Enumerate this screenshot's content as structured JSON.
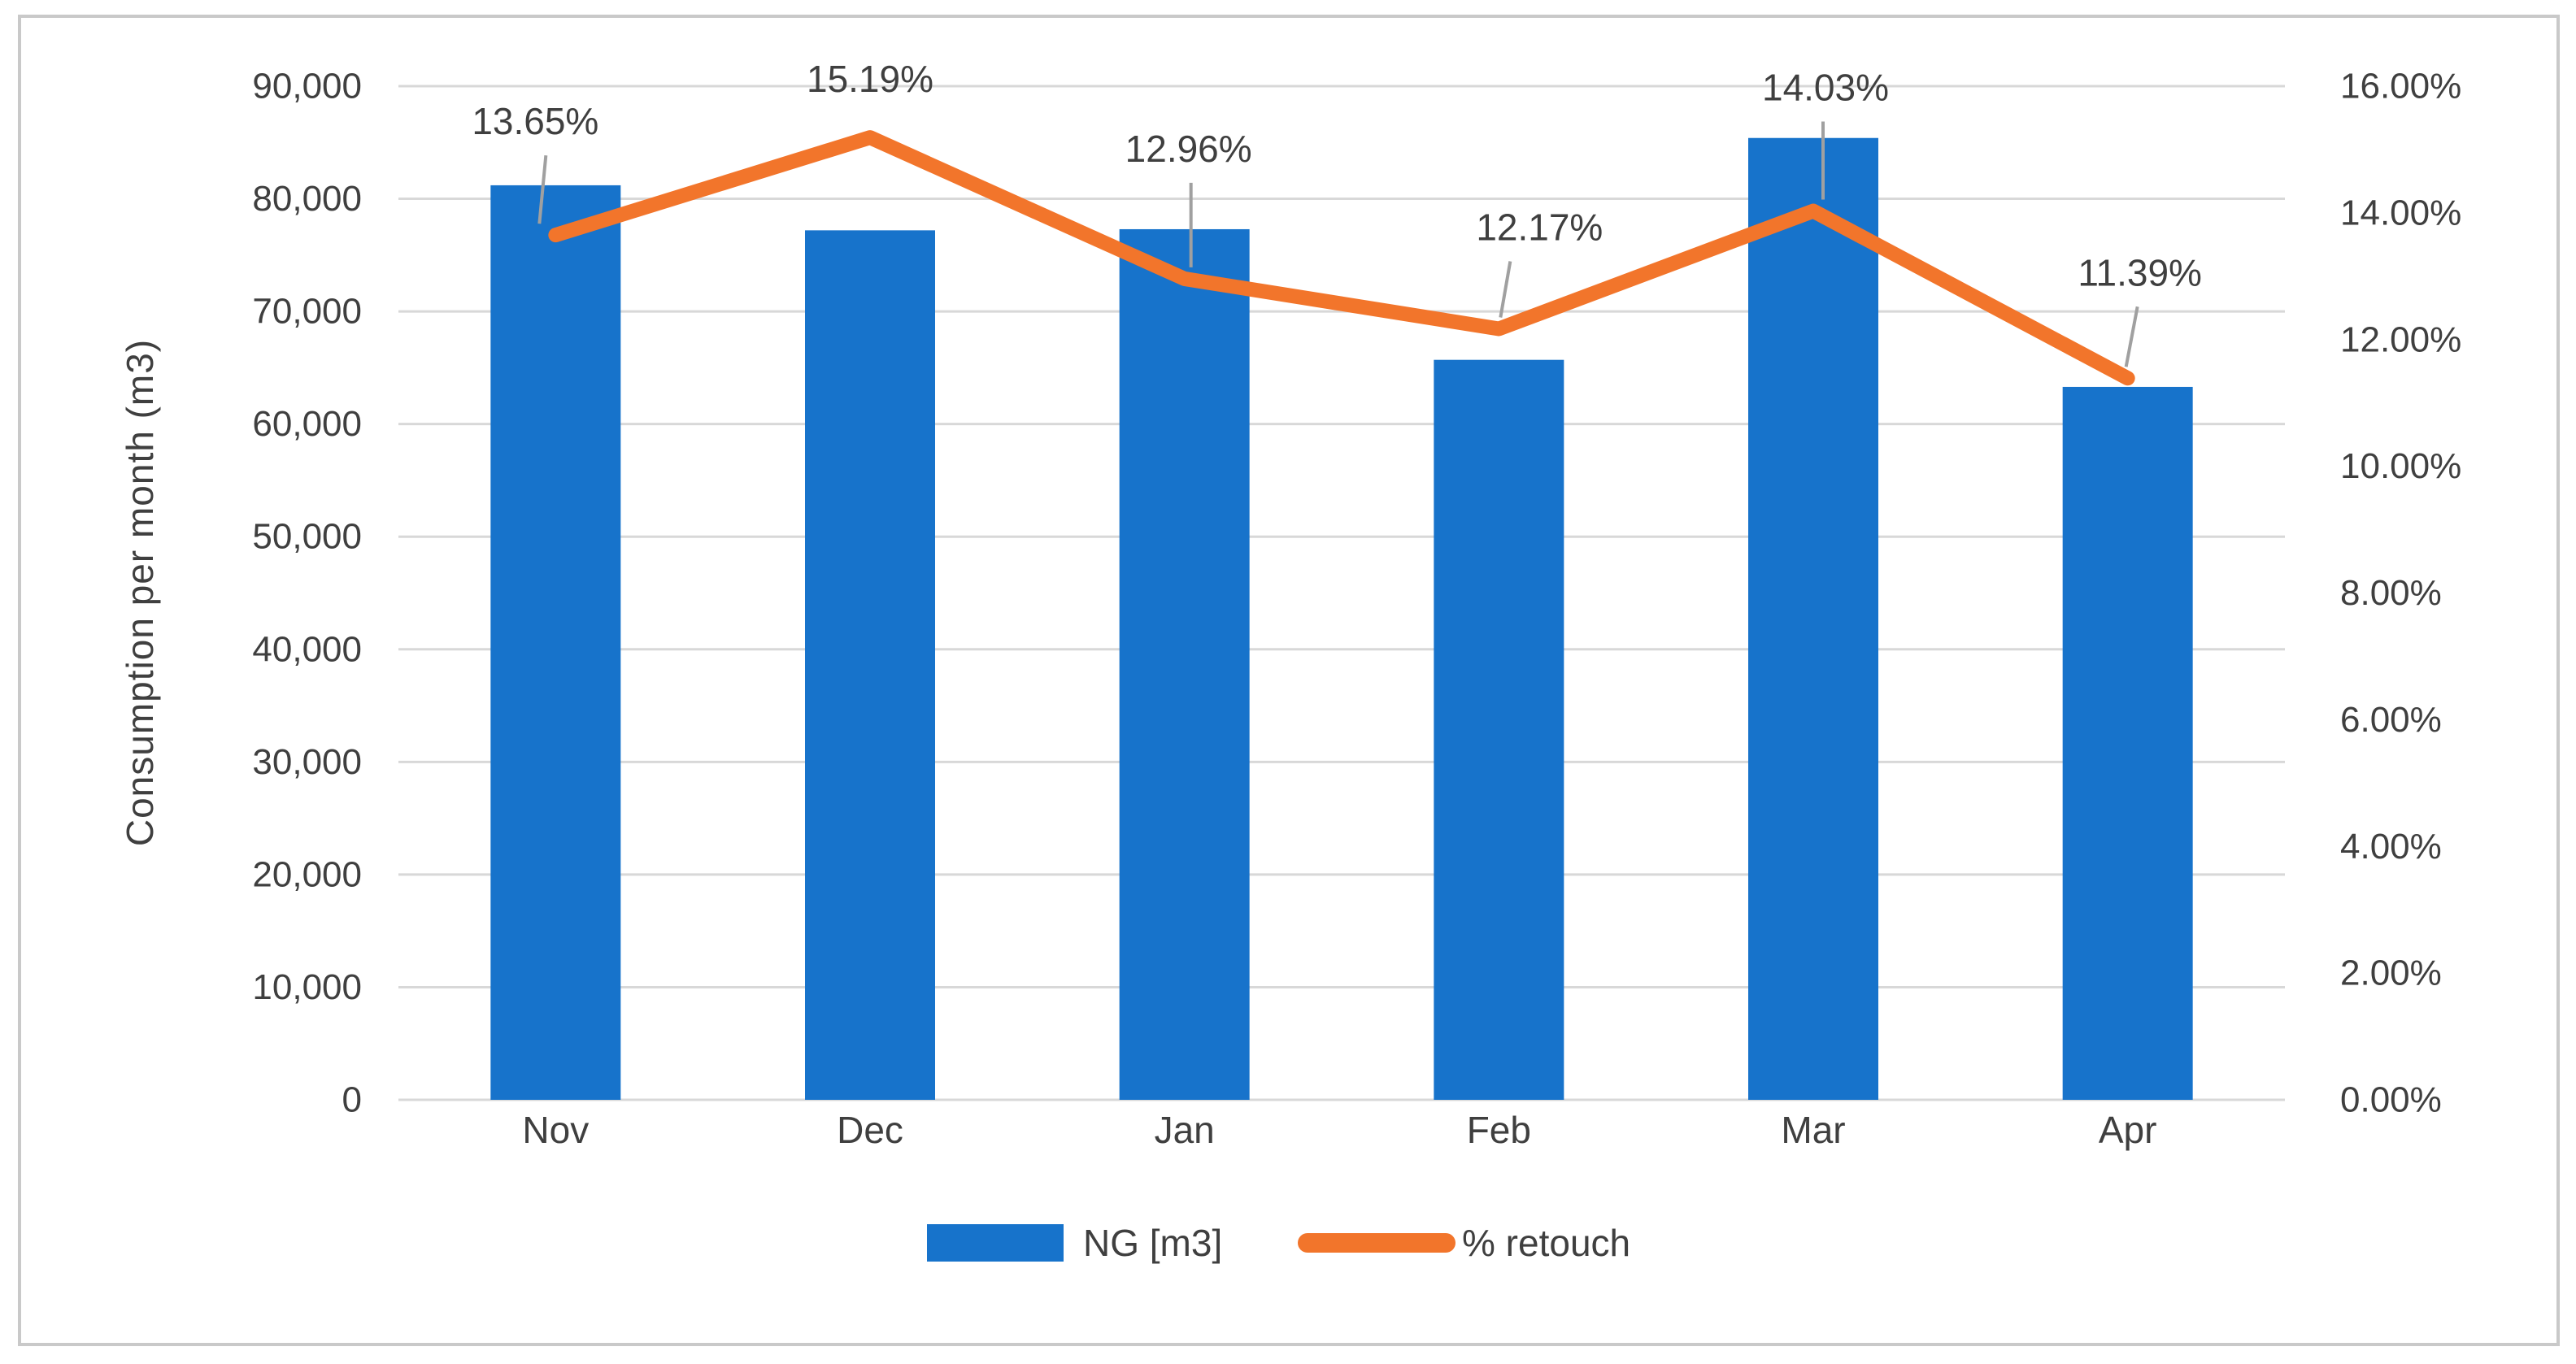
{
  "chart_data": {
    "type": "combo_bar_line",
    "title": "",
    "categories": [
      "Nov",
      "Dec",
      "Jan",
      "Feb",
      "Mar",
      "Apr"
    ],
    "series": [
      {
        "name": "NG [m3]",
        "type": "bar",
        "axis": "left",
        "values": [
          81200,
          77200,
          77300,
          65700,
          85400,
          63300
        ]
      },
      {
        "name": "% retouch",
        "type": "line",
        "axis": "right",
        "values": [
          13.65,
          15.19,
          12.96,
          12.17,
          14.03,
          11.39
        ],
        "labels": [
          "13.65%",
          "15.19%",
          "12.96%",
          "12.17%",
          "14.03%",
          "11.39%"
        ]
      }
    ],
    "left_axis": {
      "title": "Consumption per month (m3)",
      "min": 0,
      "max": 90000,
      "step": 10000,
      "tick_labels": [
        "90,000",
        "80,000",
        "70,000",
        "60,000",
        "50,000",
        "40,000",
        "30,000",
        "20,000",
        "10,000",
        "0"
      ]
    },
    "right_axis": {
      "min": 0,
      "max": 16,
      "step": 2,
      "tick_labels": [
        "16.00%",
        "14.00%",
        "12.00%",
        "10.00%",
        "8.00%",
        "6.00%",
        "4.00%",
        "2.00%",
        "0.00%"
      ]
    },
    "legend": {
      "position": "bottom",
      "entries": [
        "NG [m3]",
        "% retouch"
      ]
    },
    "grid": true,
    "colors": {
      "bar": "#1773cb",
      "line": "#f2752b",
      "text": "#3f3f3f",
      "gridline": "#d8d8d8",
      "frame": "#c9c9c9",
      "leader": "#a0a0a0",
      "background": "#ffffff"
    }
  }
}
